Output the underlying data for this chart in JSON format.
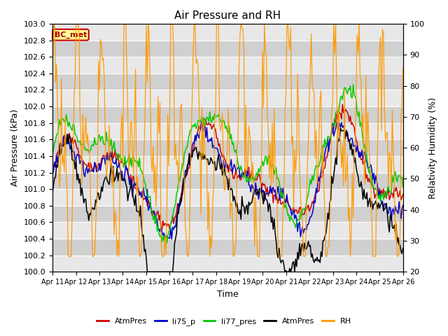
{
  "title": "Air Pressure and RH",
  "xlabel": "Time",
  "ylabel_left": "Air Pressure (kPa)",
  "ylabel_right": "Relativity Humidity (%)",
  "ylim_left": [
    100.0,
    103.0
  ],
  "ylim_right": [
    20,
    100
  ],
  "yticks_left": [
    100.0,
    100.2,
    100.4,
    100.6,
    100.8,
    101.0,
    101.2,
    101.4,
    101.6,
    101.8,
    102.0,
    102.2,
    102.4,
    102.6,
    102.8,
    103.0
  ],
  "yticks_right": [
    20,
    30,
    40,
    50,
    60,
    70,
    80,
    90,
    100
  ],
  "legend_entries": [
    "AtmPres",
    "li75_p",
    "li77_pres",
    "AtmPres",
    "RH"
  ],
  "legend_colors": [
    "#cc0000",
    "#0000cc",
    "#00cc00",
    "#000000",
    "#ff9900"
  ],
  "box_label": "BC_met",
  "box_bg": "#ffff99",
  "box_border": "#cc0000",
  "plot_bg_light": "#e8e8e8",
  "plot_bg_dark": "#d0d0d0",
  "grid_color": "#ffffff",
  "fig_bg": "#ffffff",
  "line_colors": {
    "AtmPres_red": "#cc0000",
    "li75_p": "#0000cc",
    "li77_pres": "#00cc00",
    "AtmPres_black": "#000000",
    "RH": "#ff9900"
  },
  "n_days": 15,
  "figsize": [
    6.4,
    4.8
  ],
  "dpi": 100
}
